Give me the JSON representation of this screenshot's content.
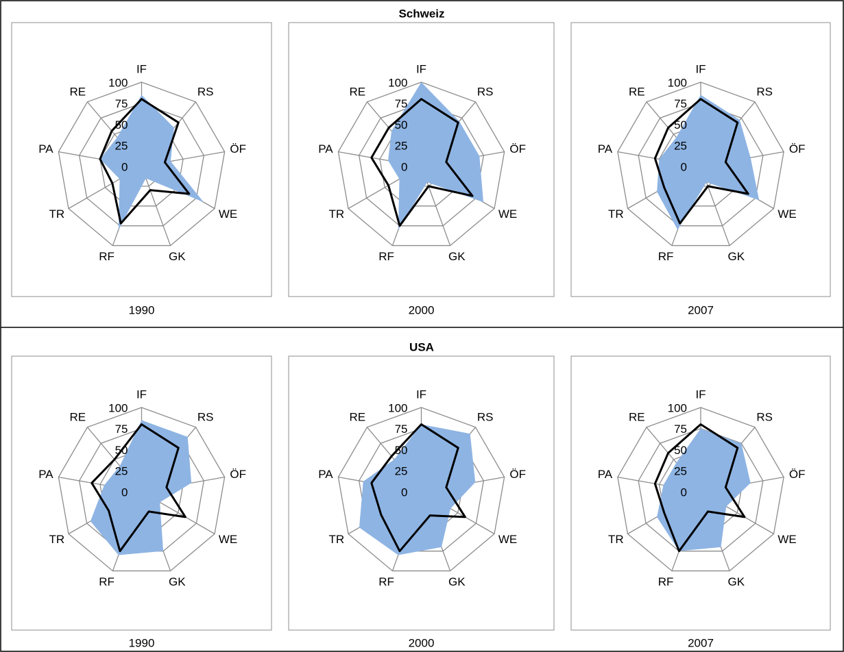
{
  "sections": [
    {
      "title": "Schweiz"
    },
    {
      "title": "USA"
    }
  ],
  "chart_data": [
    {
      "type": "radar",
      "caption": "1990",
      "categories": [
        "IF",
        "RS",
        "ÖF",
        "WE",
        "GK",
        "RF",
        "TR",
        "PA",
        "RE"
      ],
      "ylim": [
        0,
        100
      ],
      "yticks": [
        0,
        25,
        50,
        75,
        100
      ],
      "series": [
        {
          "color": "#8eb4e3",
          "values": [
            85,
            60,
            35,
            85,
            15,
            80,
            30,
            50,
            45
          ]
        },
        {
          "color": "#000000",
          "values": [
            80,
            68,
            28,
            65,
            30,
            72,
            40,
            50,
            55
          ]
        }
      ]
    },
    {
      "type": "radar",
      "caption": "2000",
      "categories": [
        "IF",
        "RS",
        "ÖF",
        "WE",
        "GK",
        "RF",
        "TR",
        "PA",
        "RE"
      ],
      "ylim": [
        0,
        100
      ],
      "yticks": [
        0,
        25,
        50,
        75,
        100
      ],
      "series": [
        {
          "color": "#8eb4e3",
          "values": [
            100,
            70,
            70,
            85,
            20,
            80,
            30,
            40,
            55
          ]
        },
        {
          "color": "#000000",
          "values": [
            80,
            68,
            30,
            70,
            25,
            75,
            45,
            60,
            60
          ]
        }
      ]
    },
    {
      "type": "radar",
      "caption": "2007",
      "categories": [
        "IF",
        "RS",
        "ÖF",
        "WE",
        "GK",
        "RF",
        "TR",
        "PA",
        "RE"
      ],
      "ylim": [
        0,
        100
      ],
      "yticks": [
        0,
        25,
        50,
        75,
        100
      ],
      "series": [
        {
          "color": "#8eb4e3",
          "values": [
            85,
            72,
            60,
            80,
            20,
            80,
            60,
            50,
            45
          ]
        },
        {
          "color": "#000000",
          "values": [
            80,
            68,
            30,
            65,
            25,
            72,
            50,
            55,
            60
          ]
        }
      ]
    },
    {
      "type": "radar",
      "caption": "1990",
      "categories": [
        "IF",
        "RS",
        "ÖF",
        "WE",
        "GK",
        "RF",
        "TR",
        "PA",
        "RE"
      ],
      "ylim": [
        0,
        100
      ],
      "yticks": [
        0,
        25,
        50,
        75,
        100
      ],
      "series": [
        {
          "color": "#8eb4e3",
          "values": [
            85,
            85,
            60,
            25,
            75,
            80,
            70,
            45,
            40
          ]
        },
        {
          "color": "#000000",
          "values": [
            80,
            68,
            30,
            60,
            25,
            75,
            45,
            60,
            50
          ]
        }
      ]
    },
    {
      "type": "radar",
      "caption": "2000",
      "categories": [
        "IF",
        "RS",
        "ÖF",
        "WE",
        "GK",
        "RF",
        "TR",
        "PA",
        "RE"
      ],
      "ylim": [
        0,
        100
      ],
      "yticks": [
        0,
        25,
        50,
        75,
        100
      ],
      "series": [
        {
          "color": "#8eb4e3",
          "values": [
            80,
            90,
            65,
            40,
            70,
            80,
            85,
            70,
            50
          ]
        },
        {
          "color": "#000000",
          "values": [
            80,
            68,
            30,
            60,
            30,
            75,
            55,
            60,
            55
          ]
        }
      ]
    },
    {
      "type": "radar",
      "caption": "2007",
      "categories": [
        "IF",
        "RS",
        "ÖF",
        "WE",
        "GK",
        "RF",
        "TR",
        "PA",
        "RE"
      ],
      "ylim": [
        0,
        100
      ],
      "yticks": [
        0,
        25,
        50,
        75,
        100
      ],
      "series": [
        {
          "color": "#8eb4e3",
          "values": [
            75,
            75,
            60,
            35,
            70,
            75,
            60,
            45,
            45
          ]
        },
        {
          "color": "#000000",
          "values": [
            80,
            68,
            30,
            60,
            25,
            75,
            50,
            55,
            60
          ]
        }
      ]
    }
  ]
}
